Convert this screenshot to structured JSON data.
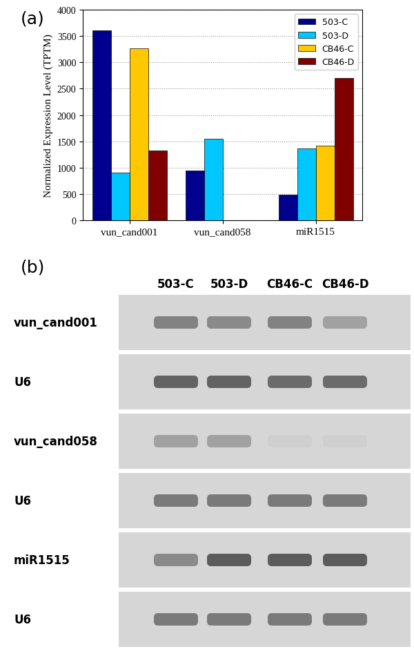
{
  "chart_data": {
    "type": "bar",
    "title": "(a)",
    "categories": [
      "vun_cand001",
      "vun_cand058",
      "miR1515"
    ],
    "series": [
      {
        "name": "503-C",
        "color": "#00008f",
        "values": [
          3610,
          940,
          480
        ]
      },
      {
        "name": "503-D",
        "color": "#00c8ff",
        "values": [
          910,
          1550,
          1370
        ]
      },
      {
        "name": "CB46-C",
        "color": "#ffc800",
        "values": [
          3270,
          0,
          1420
        ]
      },
      {
        "name": "CB46-D",
        "color": "#800000",
        "values": [
          1320,
          0,
          2700
        ]
      }
    ],
    "y_label": "Normalized Expression Level (TPTM)",
    "ylim": [
      0,
      4000
    ],
    "yticks": [
      0,
      500,
      1000,
      1500,
      2000,
      2500,
      3000,
      3500,
      4000
    ],
    "grid": true,
    "legend": "upper right"
  },
  "blot": {
    "panel_label": "(b)",
    "lanes": [
      "503-C",
      "503-D",
      "CB46-C",
      "CB46-D"
    ],
    "rows": [
      {
        "label": "vun_cand001",
        "intensity": [
          0.55,
          0.5,
          0.55,
          0.35
        ]
      },
      {
        "label": "U6",
        "intensity": [
          0.75,
          0.75,
          0.7,
          0.7
        ]
      },
      {
        "label": "vun_cand058",
        "intensity": [
          0.35,
          0.35,
          0.05,
          0.05
        ]
      },
      {
        "label": "U6",
        "intensity": [
          0.6,
          0.6,
          0.6,
          0.6
        ]
      },
      {
        "label": "miR1515",
        "intensity": [
          0.5,
          0.8,
          0.8,
          0.8
        ]
      },
      {
        "label": "U6",
        "intensity": [
          0.6,
          0.6,
          0.6,
          0.6
        ]
      }
    ]
  }
}
